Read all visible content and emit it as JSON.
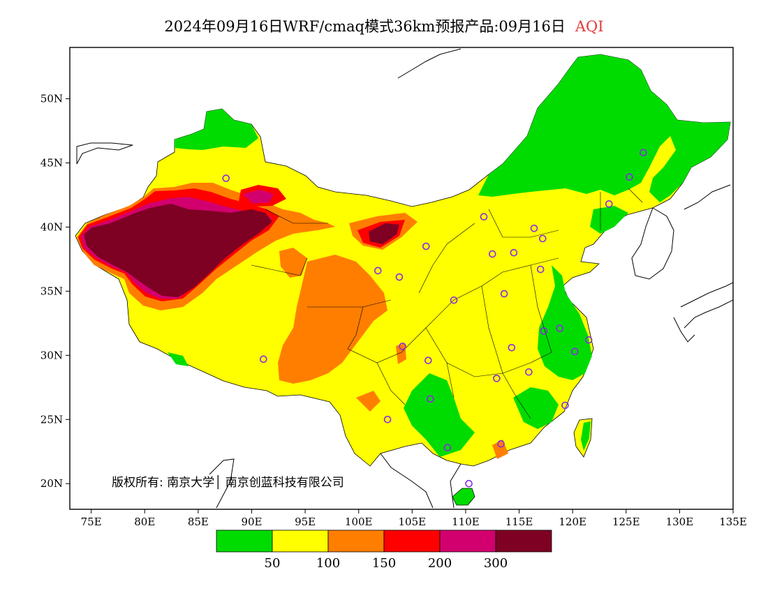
{
  "title": {
    "main": "2024年09月16日WRF/cmaq模式36km预报产品:09月16日",
    "product": "AQI"
  },
  "map": {
    "lon_range": [
      73,
      135
    ],
    "lat_range": [
      18,
      54
    ],
    "lon_ticks": [
      "75E",
      "80E",
      "85E",
      "90E",
      "95E",
      "100E",
      "105E",
      "110E",
      "115E",
      "120E",
      "125E",
      "130E",
      "135E"
    ],
    "lat_ticks": [
      "20N",
      "25N",
      "30N",
      "35N",
      "40N",
      "45N",
      "50N"
    ],
    "copyright": "版权所有: 南京大学│ 南京创蓝科技有限公司"
  },
  "legend": {
    "thresholds": [
      "50",
      "100",
      "150",
      "200",
      "300"
    ],
    "colors": [
      "#00dc00",
      "#ffff00",
      "#ff7e00",
      "#ff0000",
      "#d2006e",
      "#7e0023"
    ]
  },
  "colors": {
    "good": "#00dc00",
    "moderate": "#ffff00",
    "usg": "#ff7e00",
    "unhealthy": "#ff0000",
    "very_unhealthy": "#d2006e",
    "hazardous": "#7e0023",
    "city_marker": "#8a2be2"
  },
  "cities": [
    {
      "lon": 87.6,
      "lat": 43.8
    },
    {
      "lon": 91.1,
      "lat": 29.7
    },
    {
      "lon": 101.8,
      "lat": 36.6
    },
    {
      "lon": 103.8,
      "lat": 36.1
    },
    {
      "lon": 106.3,
      "lat": 38.5
    },
    {
      "lon": 111.7,
      "lat": 40.8
    },
    {
      "lon": 116.4,
      "lat": 39.9
    },
    {
      "lon": 117.2,
      "lat": 39.1
    },
    {
      "lon": 114.5,
      "lat": 38.0
    },
    {
      "lon": 112.5,
      "lat": 37.9
    },
    {
      "lon": 117.0,
      "lat": 36.7
    },
    {
      "lon": 113.6,
      "lat": 34.8
    },
    {
      "lon": 108.9,
      "lat": 34.3
    },
    {
      "lon": 104.1,
      "lat": 30.7
    },
    {
      "lon": 106.5,
      "lat": 29.6
    },
    {
      "lon": 106.7,
      "lat": 26.6
    },
    {
      "lon": 102.7,
      "lat": 25.0
    },
    {
      "lon": 108.3,
      "lat": 22.8
    },
    {
      "lon": 113.3,
      "lat": 23.1
    },
    {
      "lon": 110.3,
      "lat": 20.0
    },
    {
      "lon": 112.9,
      "lat": 28.2
    },
    {
      "lon": 114.3,
      "lat": 30.6
    },
    {
      "lon": 115.9,
      "lat": 28.7
    },
    {
      "lon": 117.3,
      "lat": 31.9
    },
    {
      "lon": 118.8,
      "lat": 32.1
    },
    {
      "lon": 120.2,
      "lat": 30.3
    },
    {
      "lon": 121.5,
      "lat": 31.2
    },
    {
      "lon": 119.3,
      "lat": 26.1
    },
    {
      "lon": 123.4,
      "lat": 41.8
    },
    {
      "lon": 125.3,
      "lat": 43.9
    },
    {
      "lon": 126.6,
      "lat": 45.8
    }
  ]
}
